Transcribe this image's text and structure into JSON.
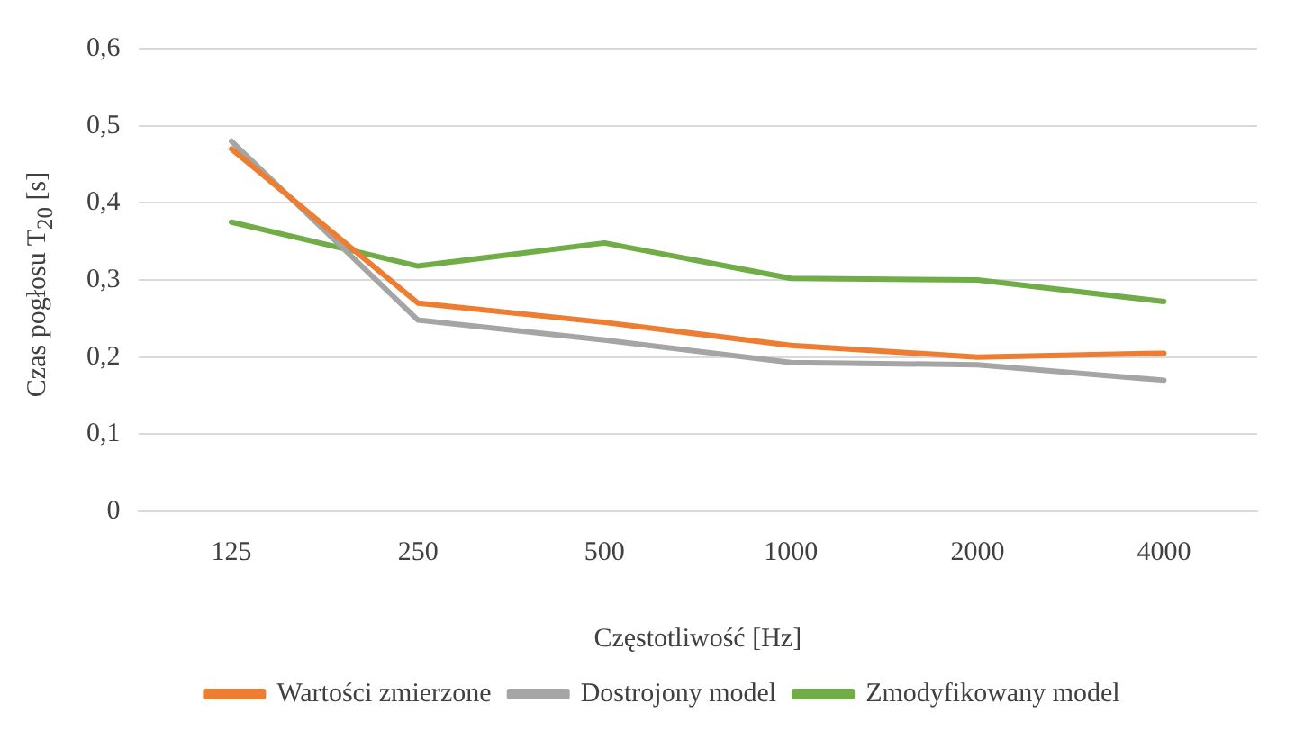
{
  "chart_data": {
    "type": "line",
    "xlabel": "Częstotliwość [Hz]",
    "ylabel": "Czas pogłosu T$_{20}$ [s]",
    "categories": [
      "125",
      "250",
      "500",
      "1000",
      "2000",
      "4000"
    ],
    "series": [
      {
        "name": "Wartości zmierzone",
        "color": "#ed7d31",
        "values": [
          0.47,
          0.27,
          0.245,
          0.215,
          0.2,
          0.205
        ]
      },
      {
        "name": "Dostrojony model",
        "color": "#a5a5a5",
        "values": [
          0.48,
          0.248,
          0.222,
          0.193,
          0.19,
          0.17
        ]
      },
      {
        "name": "Zmodyfikowany model",
        "color": "#70ad47",
        "values": [
          0.375,
          0.318,
          0.348,
          0.302,
          0.3,
          0.272
        ]
      }
    ],
    "ylim": [
      0,
      0.6
    ],
    "yticks": [
      0,
      {
        "value": 0.1,
        "label": "0,1"
      },
      {
        "value": 0.2,
        "label": "0,2"
      },
      {
        "value": 0.3,
        "label": "0,3"
      },
      {
        "value": 0.4,
        "label": "0,4"
      },
      {
        "value": 0.5,
        "label": "0,5"
      },
      {
        "value": 0.6,
        "label": "0,6"
      }
    ],
    "grid": "y",
    "legend": "bottom",
    "marker": "none",
    "line_style": "solid"
  }
}
